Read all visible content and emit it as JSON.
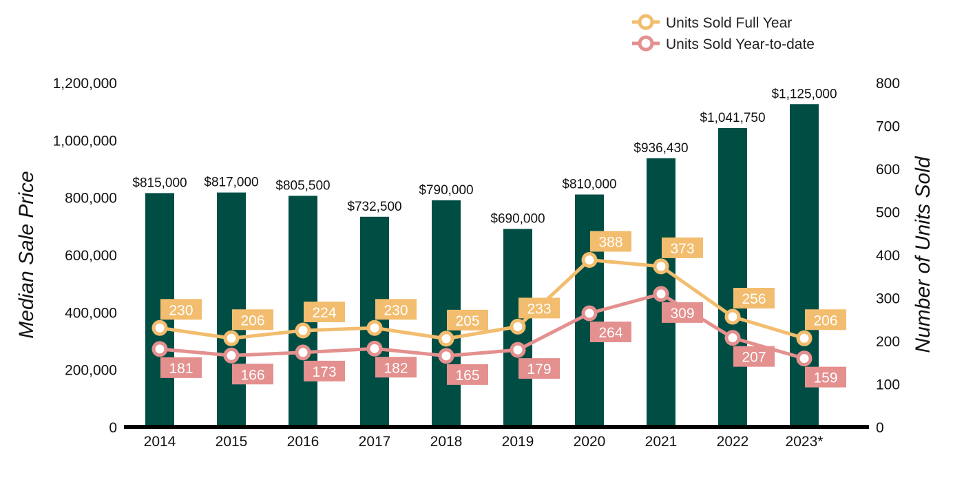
{
  "chart_data": {
    "type": "bar",
    "categories": [
      "2014",
      "2015",
      "2016",
      "2017",
      "2018",
      "2019",
      "2020",
      "2021",
      "2022",
      "2023*"
    ],
    "bar_series": {
      "name": "Median Sale Price",
      "values": [
        815000,
        817000,
        805500,
        732500,
        790000,
        690000,
        810000,
        936430,
        1041750,
        1125000
      ],
      "labels": [
        "$815,000",
        "$817,000",
        "$805,500",
        "$732,500",
        "$790,000",
        "$690,000",
        "$810,000",
        "$936,430",
        "$1,041,750",
        "$1,125,000"
      ],
      "color": "#004d44"
    },
    "line_series": [
      {
        "name": "Units Sold Full Year",
        "values": [
          230,
          206,
          224,
          230,
          205,
          233,
          388,
          373,
          256,
          206
        ],
        "color": "#f2bd6e"
      },
      {
        "name": "Units Sold Year-to-date",
        "values": [
          181,
          166,
          173,
          182,
          165,
          179,
          264,
          309,
          207,
          159
        ],
        "color": "#e3908f"
      }
    ],
    "ylabel_left": "Median Sale Price",
    "ylabel_right": "Number of Units Sold",
    "ylim_left": [
      0,
      1200000
    ],
    "ylim_right": [
      0,
      800
    ],
    "yticks_left": [
      "0",
      "200,000",
      "400,000",
      "600,000",
      "800,000",
      "1,000,000",
      "1,200,000"
    ],
    "yticks_right": [
      "0",
      "100",
      "200",
      "300",
      "400",
      "500",
      "600",
      "700",
      "800"
    ],
    "grid": false,
    "legend_position": "top-right"
  }
}
